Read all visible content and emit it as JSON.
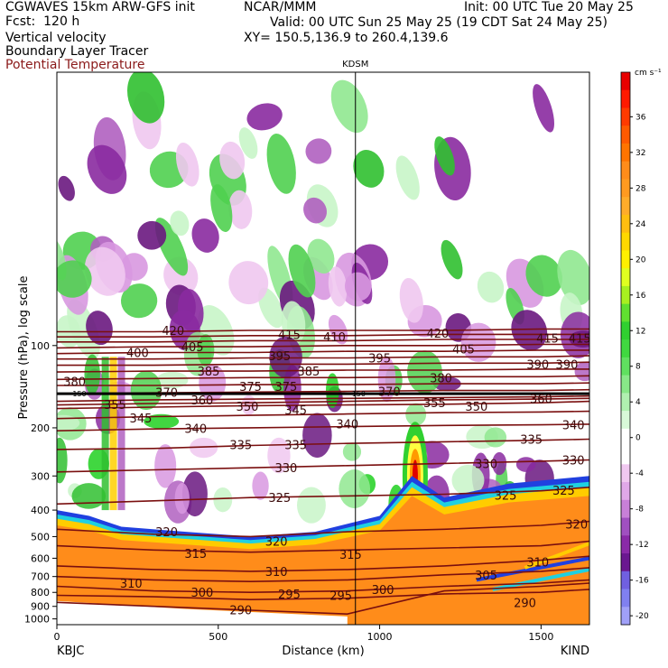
{
  "header": {
    "left_line1": "CGWAVES 15km ARW-GFS init",
    "left_line2": "Fcst:  120 h",
    "center_line1": "NCAR/MMM",
    "right_line1": "Init: 00 UTC Tue 20 May 25",
    "valid_line": "Valid: 00 UTC Sun 25 May 25 (19 CDT Sat 24 May 25)",
    "xy_line": "XY= 150.5,136.9 to 260.4,139.6",
    "field1": "Vertical velocity",
    "field2": "Boundary Layer Tracer",
    "field3": "Potential Temperature"
  },
  "colors": {
    "theta_contour": "#7a0f0f",
    "upward": [
      "#c8f5c8",
      "#90e890",
      "#50d050",
      "#30c030",
      "#20d020",
      "#ffff40",
      "#ffd000",
      "#ff9a00",
      "#ff6a00",
      "#ff3000",
      "#e00000"
    ],
    "downward": [
      "#f0c8f0",
      "#d898e0",
      "#b060c0",
      "#8a2aa0",
      "#6a1880",
      "#7070e8",
      "#9090f0"
    ],
    "bl_tracer": [
      "#ff8c1a",
      "#ffa040",
      "#ffcc00",
      "#20d0e0",
      "#2040e0"
    ]
  },
  "chart_data": {
    "type": "heatmap",
    "title": "",
    "station_marker": "KDSM",
    "xlabel": "Distance (km)",
    "ylabel": "Pressure (hPa), log scale",
    "xlim": [
      0,
      1650
    ],
    "ylim": [
      1050,
      10
    ],
    "y_scale": "log",
    "x_ticks": [
      "0",
      "500",
      "1000",
      "1500"
    ],
    "x_tick_values": [
      0,
      500,
      1000,
      1500
    ],
    "y_ticks": [
      "100",
      "200",
      "300",
      "400",
      "500",
      "600",
      "700",
      "800",
      "900",
      "1000"
    ],
    "y_tick_values": [
      100,
      200,
      300,
      400,
      500,
      600,
      700,
      800,
      900,
      1000
    ],
    "endpoints": {
      "left": "KBJC",
      "right": "KIND"
    },
    "kdsm_distance_km": 925,
    "colorbar": {
      "unit": "cm s⁻¹",
      "labels": [
        "36",
        "32",
        "28",
        "24",
        "20",
        "16",
        "12",
        "8",
        "4",
        "0",
        "-4",
        "-8",
        "-12",
        "-16",
        "-20"
      ],
      "label_values": [
        36,
        32,
        28,
        24,
        20,
        16,
        12,
        8,
        4,
        0,
        -4,
        -8,
        -12,
        -16,
        -20
      ],
      "bands": [
        {
          "v": 40,
          "c": "#e80000"
        },
        {
          "v": 38,
          "c": "#ff1a00"
        },
        {
          "v": 36,
          "c": "#ff3a00"
        },
        {
          "v": 34,
          "c": "#ff5a00"
        },
        {
          "v": 32,
          "c": "#ff7400"
        },
        {
          "v": 30,
          "c": "#ff8c1a"
        },
        {
          "v": 28,
          "c": "#ff9a20"
        },
        {
          "v": 26,
          "c": "#ffac2a"
        },
        {
          "v": 24,
          "c": "#ffbe10"
        },
        {
          "v": 22,
          "c": "#ffd800"
        },
        {
          "v": 20,
          "c": "#fff000"
        },
        {
          "v": 18,
          "c": "#e0ff20"
        },
        {
          "v": 16,
          "c": "#a8f020"
        },
        {
          "v": 14,
          "c": "#60e030"
        },
        {
          "v": 12,
          "c": "#30d030"
        },
        {
          "v": 10,
          "c": "#40d840"
        },
        {
          "v": 8,
          "c": "#60e060"
        },
        {
          "v": 6,
          "c": "#88e888"
        },
        {
          "v": 4,
          "c": "#b0f0b0"
        },
        {
          "v": 2,
          "c": "#d8f8d8"
        },
        {
          "v": 0,
          "c": "#ffffff"
        },
        {
          "v": -2,
          "c": "#ffffff"
        },
        {
          "v": -4,
          "c": "#f0c8f0"
        },
        {
          "v": -6,
          "c": "#e0a8e8"
        },
        {
          "v": -8,
          "c": "#c880d8"
        },
        {
          "v": -10,
          "c": "#a050c0"
        },
        {
          "v": -12,
          "c": "#8a2aa8"
        },
        {
          "v": -14,
          "c": "#6a1890"
        },
        {
          "v": -16,
          "c": "#7060e0"
        },
        {
          "v": -18,
          "c": "#8080f0"
        },
        {
          "v": -20,
          "c": "#a0a0f8"
        }
      ]
    },
    "theta_contours": [
      {
        "value": 290,
        "x": [
          0,
          300,
          600,
          900,
          1200,
          1500,
          1650
        ],
        "p": [
          870,
          900,
          930,
          960,
          790,
          760,
          740
        ]
      },
      {
        "value": 295,
        "x": [
          0,
          300,
          600,
          900,
          1200,
          1500,
          1650
        ],
        "p": [
          820,
          830,
          850,
          840,
          810,
          800,
          780
        ]
      },
      {
        "value": 300,
        "x": [
          0,
          300,
          600,
          900,
          1200,
          1500,
          1650
        ],
        "p": [
          760,
          790,
          800,
          790,
          760,
          740,
          720
        ]
      },
      {
        "value": 305,
        "x": [
          0,
          300,
          600,
          900,
          1200,
          1500,
          1650
        ],
        "p": [
          700,
          720,
          730,
          720,
          690,
          670,
          650
        ]
      },
      {
        "value": 310,
        "x": [
          0,
          300,
          600,
          900,
          1200,
          1500,
          1650
        ],
        "p": [
          640,
          660,
          670,
          660,
          640,
          610,
          590
        ]
      },
      {
        "value": 315,
        "x": [
          0,
          300,
          600,
          900,
          1200,
          1500,
          1650
        ],
        "p": [
          540,
          560,
          570,
          560,
          550,
          540,
          520
        ]
      },
      {
        "value": 320,
        "x": [
          0,
          300,
          600,
          900,
          1200,
          1500,
          1650
        ],
        "p": [
          470,
          490,
          500,
          480,
          470,
          455,
          440
        ]
      },
      {
        "value": 325,
        "x": [
          0,
          300,
          600,
          900,
          1200,
          1500,
          1650
        ],
        "p": [
          380,
          370,
          360,
          355,
          350,
          340,
          330
        ]
      },
      {
        "value": 330,
        "x": [
          0,
          300,
          600,
          900,
          1200,
          1500,
          1650
        ],
        "p": [
          290,
          285,
          280,
          275,
          270,
          265,
          262
        ]
      },
      {
        "value": 335,
        "x": [
          0,
          300,
          600,
          900,
          1200,
          1500,
          1650
        ],
        "p": [
          240,
          238,
          232,
          228,
          225,
          222,
          220
        ]
      },
      {
        "value": 340,
        "x": [
          0,
          300,
          600,
          900,
          1200,
          1500,
          1650
        ],
        "p": [
          205,
          202,
          200,
          198,
          196,
          195,
          194
        ]
      },
      {
        "value": 345,
        "x": [
          0,
          300,
          600,
          900,
          1200,
          1500,
          1650
        ],
        "p": [
          185,
          182,
          180,
          178,
          176,
          175,
          174
        ]
      },
      {
        "value": 350,
        "x": [
          0,
          300,
          600,
          900,
          1200,
          1500,
          1650
        ],
        "p": [
          170,
          168,
          166,
          165,
          164,
          162,
          160
        ]
      },
      {
        "value": 355,
        "x": [
          0,
          300,
          600,
          900,
          1200,
          1500,
          1650
        ],
        "p": [
          165,
          163,
          162,
          160,
          158,
          157,
          156
        ]
      },
      {
        "value": 360,
        "x": [
          0,
          300,
          600,
          900,
          1200,
          1500,
          1650
        ],
        "p": [
          160,
          158,
          157,
          156,
          155,
          154,
          153
        ]
      },
      {
        "value": 370,
        "x": [
          0,
          300,
          600,
          900,
          1200,
          1500,
          1650
        ],
        "p": [
          150,
          149,
          148,
          147,
          146,
          146,
          145
        ]
      },
      {
        "value": 375,
        "x": [
          0,
          300,
          600,
          900,
          1200,
          1500,
          1650
        ],
        "p": [
          140,
          140,
          139,
          139,
          138,
          138,
          137
        ]
      },
      {
        "value": 380,
        "x": [
          0,
          300,
          600,
          900,
          1200,
          1500,
          1650
        ],
        "p": [
          133,
          132,
          131,
          131,
          130,
          130,
          129
        ]
      },
      {
        "value": 385,
        "x": [
          0,
          300,
          600,
          900,
          1200,
          1500,
          1650
        ],
        "p": [
          125,
          124,
          124,
          123,
          123,
          122,
          122
        ]
      },
      {
        "value": 390,
        "x": [
          0,
          300,
          600,
          900,
          1200,
          1500,
          1650
        ],
        "p": [
          118,
          118,
          117,
          117,
          116,
          116,
          115
        ]
      },
      {
        "value": 395,
        "x": [
          0,
          300,
          600,
          900,
          1200,
          1500,
          1650
        ],
        "p": [
          112,
          112,
          111,
          111,
          110,
          110,
          109
        ]
      },
      {
        "value": 400,
        "x": [
          0,
          300,
          600,
          900,
          1200,
          1500,
          1650
        ],
        "p": [
          107,
          106,
          106,
          105,
          105,
          104,
          104
        ]
      },
      {
        "value": 405,
        "x": [
          0,
          300,
          600,
          900,
          1200,
          1500,
          1650
        ],
        "p": [
          102,
          101,
          101,
          100,
          100,
          99,
          99
        ]
      },
      {
        "value": 410,
        "x": [
          0,
          300,
          600,
          900,
          1200,
          1500,
          1650
        ],
        "p": [
          97,
          97,
          96,
          96,
          95,
          95,
          95
        ]
      },
      {
        "value": 415,
        "x": [
          0,
          300,
          600,
          900,
          1200,
          1500,
          1650
        ],
        "p": [
          93,
          93,
          92,
          92,
          91,
          91,
          91
        ]
      },
      {
        "value": 420,
        "x": [
          0,
          300,
          600,
          900,
          1200,
          1500,
          1650
        ],
        "p": [
          89,
          89,
          88,
          88,
          88,
          87,
          87
        ]
      }
    ],
    "contour_labels": [
      {
        "text": "420",
        "x": 360,
        "p": 88
      },
      {
        "text": "415",
        "x": 720,
        "p": 91
      },
      {
        "text": "410",
        "x": 860,
        "p": 93
      },
      {
        "text": "420",
        "x": 1180,
        "p": 90
      },
      {
        "text": "415",
        "x": 1520,
        "p": 94
      },
      {
        "text": "415",
        "x": 1620,
        "p": 94
      },
      {
        "text": "400",
        "x": 250,
        "p": 106
      },
      {
        "text": "405",
        "x": 420,
        "p": 101
      },
      {
        "text": "395",
        "x": 690,
        "p": 109
      },
      {
        "text": "395",
        "x": 1000,
        "p": 111
      },
      {
        "text": "405",
        "x": 1260,
        "p": 103
      },
      {
        "text": "390",
        "x": 1490,
        "p": 117
      },
      {
        "text": "390",
        "x": 1580,
        "p": 117
      },
      {
        "text": "380",
        "x": 55,
        "p": 135
      },
      {
        "text": "385",
        "x": 470,
        "p": 124
      },
      {
        "text": "385",
        "x": 780,
        "p": 124
      },
      {
        "text": "380",
        "x": 1190,
        "p": 131
      },
      {
        "text": "370",
        "x": 340,
        "p": 148
      },
      {
        "text": "375",
        "x": 600,
        "p": 141
      },
      {
        "text": "375",
        "x": 710,
        "p": 141
      },
      {
        "text": "370",
        "x": 1030,
        "p": 147
      },
      {
        "text": "360",
        "x": 1500,
        "p": 156
      },
      {
        "text": "355",
        "x": 180,
        "p": 164
      },
      {
        "text": "360",
        "x": 450,
        "p": 158
      },
      {
        "text": "350",
        "x": 590,
        "p": 167
      },
      {
        "text": "345",
        "x": 740,
        "p": 172
      },
      {
        "text": "355",
        "x": 1170,
        "p": 162
      },
      {
        "text": "350",
        "x": 1300,
        "p": 167
      },
      {
        "text": "345",
        "x": 260,
        "p": 184
      },
      {
        "text": "340",
        "x": 430,
        "p": 201
      },
      {
        "text": "340",
        "x": 900,
        "p": 193
      },
      {
        "text": "340",
        "x": 1600,
        "p": 195
      },
      {
        "text": "335",
        "x": 570,
        "p": 230
      },
      {
        "text": "335",
        "x": 740,
        "p": 230
      },
      {
        "text": "335",
        "x": 1470,
        "p": 220
      },
      {
        "text": "330",
        "x": 710,
        "p": 280
      },
      {
        "text": "330",
        "x": 1330,
        "p": 270
      },
      {
        "text": "330",
        "x": 1600,
        "p": 262
      },
      {
        "text": "325",
        "x": 690,
        "p": 360
      },
      {
        "text": "325",
        "x": 1390,
        "p": 352
      },
      {
        "text": "325",
        "x": 1570,
        "p": 338
      },
      {
        "text": "320",
        "x": 340,
        "p": 480
      },
      {
        "text": "320",
        "x": 680,
        "p": 520
      },
      {
        "text": "320",
        "x": 1610,
        "p": 450
      },
      {
        "text": "315",
        "x": 430,
        "p": 575
      },
      {
        "text": "315",
        "x": 910,
        "p": 580
      },
      {
        "text": "310",
        "x": 230,
        "p": 740
      },
      {
        "text": "310",
        "x": 680,
        "p": 670
      },
      {
        "text": "310",
        "x": 1490,
        "p": 620
      },
      {
        "text": "305",
        "x": 1330,
        "p": 690
      },
      {
        "text": "300",
        "x": 450,
        "p": 800
      },
      {
        "text": "300",
        "x": 1010,
        "p": 780
      },
      {
        "text": "295",
        "x": 720,
        "p": 810
      },
      {
        "text": "295",
        "x": 880,
        "p": 820
      },
      {
        "text": "290",
        "x": 570,
        "p": 925
      },
      {
        "text": "290",
        "x": 1450,
        "p": 870
      }
    ],
    "annotations": [
      {
        "text": "150",
        "x": 70,
        "p": 150
      },
      {
        "text": "150",
        "x": 935,
        "p": 150
      }
    ]
  }
}
